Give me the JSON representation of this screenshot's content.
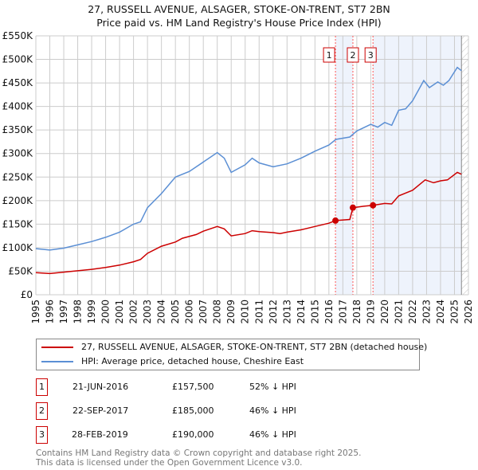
{
  "chart_data": {
    "type": "line",
    "title": "27, RUSSELL AVENUE, ALSAGER, STOKE-ON-TRENT, ST7 2BN",
    "subtitle": "Price paid vs. HM Land Registry's House Price Index (HPI)",
    "xlim": [
      1995,
      2026
    ],
    "ylim": [
      0,
      550000
    ],
    "yticks": [
      0,
      50000,
      100000,
      150000,
      200000,
      250000,
      300000,
      350000,
      400000,
      450000,
      500000,
      550000
    ],
    "ytick_labels": [
      "£0",
      "£50K",
      "£100K",
      "£150K",
      "£200K",
      "£250K",
      "£300K",
      "£350K",
      "£400K",
      "£450K",
      "£500K",
      "£550K"
    ],
    "xticks": [
      "1995",
      "1996",
      "1997",
      "1998",
      "1999",
      "2000",
      "2001",
      "2002",
      "2003",
      "2004",
      "2005",
      "2006",
      "2007",
      "2008",
      "2009",
      "2010",
      "2011",
      "2012",
      "2013",
      "2014",
      "2015",
      "2016",
      "2017",
      "2018",
      "2019",
      "2020",
      "2021",
      "2022",
      "2023",
      "2024",
      "2025",
      "2026"
    ],
    "grid": true,
    "series": [
      {
        "name": "27, RUSSELL AVENUE, ALSAGER, STOKE-ON-TRENT, ST7 2BN (detached house)",
        "color": "#cc0000",
        "x": [
          1995,
          1996,
          1997,
          1998,
          1999,
          2000,
          2001,
          2002,
          2002.5,
          2003,
          2004,
          2005,
          2005.5,
          2006.5,
          2007,
          2008,
          2008.5,
          2009,
          2010,
          2010.5,
          2011,
          2012,
          2012.5,
          2013,
          2014,
          2015,
          2016,
          2016.47,
          2017.5,
          2017.72,
          2018.5,
          2019.16,
          2020,
          2020.5,
          2021,
          2022,
          2022.9,
          2023.5,
          2024,
          2024.5,
          2025.2,
          2025.5
        ],
        "y": [
          47000,
          45000,
          48000,
          51000,
          54000,
          58000,
          63000,
          70000,
          75000,
          88000,
          103000,
          112000,
          120000,
          128000,
          135000,
          145000,
          140000,
          125000,
          130000,
          136000,
          134000,
          132000,
          130000,
          133000,
          138000,
          145000,
          152000,
          157500,
          160000,
          185000,
          188000,
          190000,
          194000,
          193000,
          210000,
          222000,
          244000,
          238000,
          242000,
          244000,
          260000,
          256000
        ]
      },
      {
        "name": "HPI: Average price, detached house, Cheshire East",
        "color": "#5b8fd4",
        "x": [
          1995,
          1996,
          1997,
          1998,
          1999,
          2000,
          2001,
          2002,
          2002.5,
          2003,
          2004,
          2005,
          2006,
          2007,
          2008,
          2008.5,
          2009,
          2010,
          2010.5,
          2011,
          2012,
          2013,
          2014,
          2015,
          2016,
          2016.5,
          2017.5,
          2018,
          2019,
          2019.5,
          2020,
          2020.5,
          2021,
          2021.5,
          2022,
          2022.8,
          2023.2,
          2023.8,
          2024.2,
          2024.6,
          2025.2,
          2025.5
        ],
        "y": [
          98000,
          95000,
          99000,
          106000,
          113000,
          122000,
          133000,
          150000,
          155000,
          185000,
          215000,
          250000,
          262000,
          282000,
          302000,
          290000,
          260000,
          276000,
          290000,
          280000,
          272000,
          278000,
          290000,
          305000,
          318000,
          330000,
          335000,
          348000,
          362000,
          356000,
          366000,
          360000,
          392000,
          395000,
          412000,
          455000,
          440000,
          452000,
          445000,
          455000,
          483000,
          476000
        ]
      }
    ],
    "sales": [
      {
        "label": "1",
        "x": 2016.47,
        "y": 157500,
        "date": "21-JUN-2016",
        "price": "£157,500",
        "hpi": "52% ↓ HPI"
      },
      {
        "label": "2",
        "x": 2017.72,
        "y": 185000,
        "date": "22-SEP-2017",
        "price": "£185,000",
        "hpi": "46% ↓ HPI"
      },
      {
        "label": "3",
        "x": 2019.16,
        "y": 190000,
        "date": "28-FEB-2019",
        "price": "£190,000",
        "hpi": "46% ↓ HPI"
      }
    ],
    "shaded_ranges": [
      [
        2016.47,
        2017.72
      ],
      [
        2019.16,
        2025.5
      ]
    ],
    "forecast_start": 2025.5
  },
  "footer": [
    "Contains HM Land Registry data © Crown copyright and database right 2025.",
    "This data is licensed under the Open Government Licence v3.0."
  ]
}
